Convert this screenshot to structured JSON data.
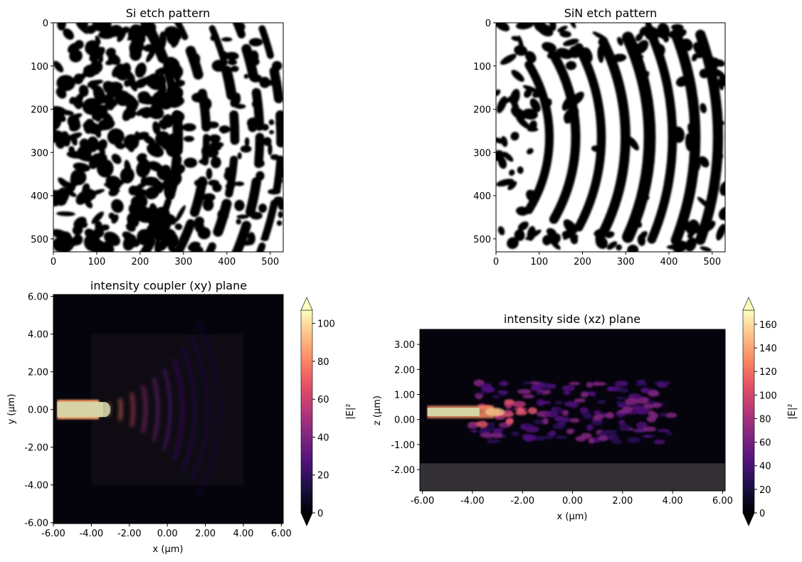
{
  "chart_data": [
    {
      "type": "heatmap",
      "title": "Si etch pattern",
      "xlabel": "",
      "ylabel": "",
      "xlim": [
        0,
        530
      ],
      "ylim": [
        530,
        0
      ],
      "xticks": [
        0,
        100,
        200,
        300,
        400,
        500
      ],
      "yticks": [
        0,
        100,
        200,
        300,
        400,
        500
      ],
      "colormap": "binary (black = 0, white = 1)",
      "description_values": "binary etch mask, ~530x530 pixels; concentric curved bands (centered near x≈-100) on the right half, random blob texture on the left half"
    },
    {
      "type": "heatmap",
      "title": "SiN etch pattern",
      "xlabel": "",
      "ylabel": "",
      "xlim": [
        0,
        530
      ],
      "ylim": [
        530,
        0
      ],
      "xticks": [
        0,
        100,
        200,
        300,
        400,
        500
      ],
      "yticks": [
        0,
        100,
        200,
        300,
        400,
        500
      ],
      "colormap": "binary (black = 0, white = 1)",
      "description_values": "binary etch mask, ~530x530 pixels; strong concentric arc bars from x≈100 to x≈480"
    },
    {
      "type": "heatmap",
      "title": "intensity coupler (xy) plane",
      "xlabel": "x (µm)",
      "ylabel": "y (µm)",
      "xlim": [
        -6.0,
        6.1
      ],
      "ylim": [
        -6.05,
        6.1
      ],
      "xticks": [
        "-6.00",
        "-4.00",
        "-2.00",
        "0.00",
        "2.00",
        "4.00",
        "6.00"
      ],
      "yticks": [
        "6.00",
        "4.00",
        "2.00",
        "0.00",
        "-2.00",
        "-4.00",
        "-6.00"
      ],
      "colormap": "magma",
      "colorbar": {
        "label": "|E|²",
        "min": 0,
        "max": 107,
        "ticks": [
          0,
          20,
          40,
          60,
          80,
          100
        ],
        "extend": "both"
      },
      "features": {
        "waveguide_x": [
          -5.8,
          -3.9
        ],
        "waveguide_y_halfwidth": 0.4,
        "wavefront_center_x": -7,
        "wavefront_spacing_um": 0.65
      }
    },
    {
      "type": "heatmap",
      "title": "intensity side (xz) plane",
      "xlabel": "x (µm)",
      "ylabel": "z (µm)",
      "xlim": [
        -6.1,
        6.1
      ],
      "ylim": [
        -2.85,
        3.6
      ],
      "xticks": [
        "-6.00",
        "-4.00",
        "-2.00",
        "0.00",
        "2.00",
        "4.00",
        "6.00"
      ],
      "yticks": [
        "3.00",
        "2.00",
        "1.00",
        "0.00",
        "-1.00",
        "-2.00"
      ],
      "colormap": "magma",
      "colorbar": {
        "label": "|E|²",
        "min": 0,
        "max": 172,
        "ticks": [
          0,
          20,
          40,
          60,
          80,
          100,
          120,
          140,
          160
        ],
        "extend": "both"
      },
      "features": {
        "substrate_z_top": -1.75,
        "waveguide_z": 0.3,
        "waveguide_x": [
          -5.8,
          -4.0
        ]
      }
    }
  ]
}
